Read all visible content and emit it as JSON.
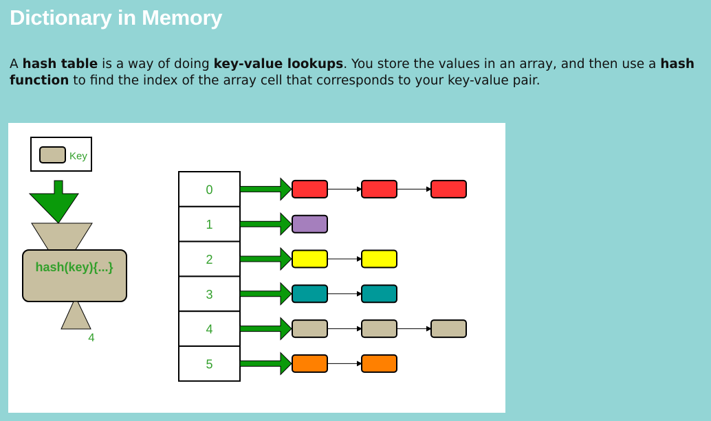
{
  "header": {
    "title": "Dictionary in Memory"
  },
  "description": {
    "t1": "A ",
    "b1": "hash table",
    "t2": " is a way of doing ",
    "b2": "key-value lookups",
    "t3": ". You store the values in an array, and then use a ",
    "b3": "hash function",
    "t4": " to find the index of the array cell that corresponds to your key-value pair."
  },
  "diagram": {
    "key_label": "Key",
    "hash_label": "hash(key){...}",
    "hash_output": "4",
    "array_indices": [
      "0",
      "1",
      "2",
      "3",
      "4",
      "5"
    ],
    "chains": [
      [
        "#ff3333",
        "#ff3333",
        "#ff3333"
      ],
      [
        "#a57fbd"
      ],
      [
        "#ffff00",
        "#ffff00"
      ],
      [
        "#009999",
        "#009999"
      ],
      [
        "#c8bfa0",
        "#c8bfa0",
        "#c8bfa0"
      ],
      [
        "#ff8000",
        "#ff8000"
      ]
    ],
    "colors": {
      "label_green": "#33a02c",
      "arrow_green": "#0a9a0a",
      "funnel_tan": "#c8bfa0"
    }
  }
}
